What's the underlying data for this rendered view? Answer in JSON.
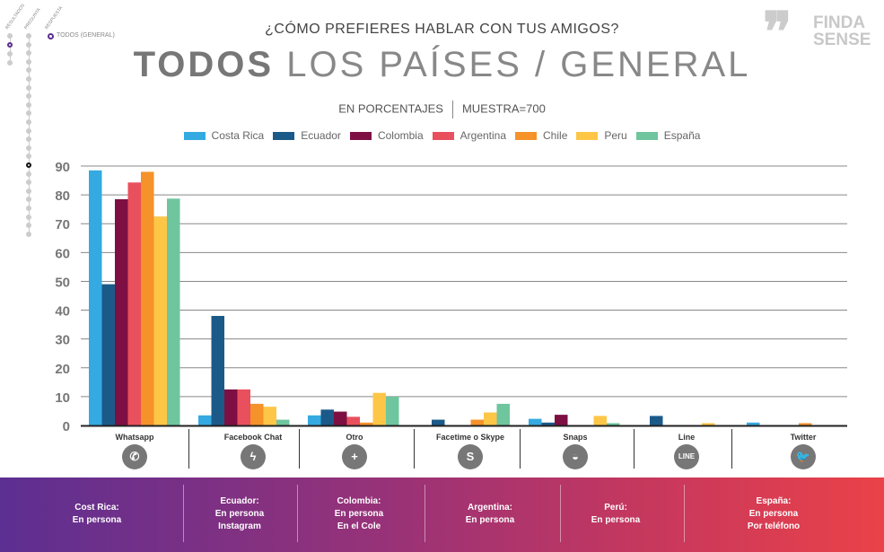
{
  "nav": {
    "columns": [
      "RESULTADOS",
      "PREGUNTA",
      "RESPUESTA"
    ],
    "current": "TODOS (GENERAL)",
    "accent": "#5b2d8e"
  },
  "header": {
    "question": "¿CÓMO PREFIERES HABLAR CON TUS AMIGOS?",
    "title_bold": "TODOS",
    "title_light": "LOS PAÍSES / GENERAL",
    "unit": "EN PORCENTAJES",
    "sample": "MUESTRA=700"
  },
  "logo": {
    "line1": "FINDA",
    "line2": "SENSE"
  },
  "chart_data": {
    "type": "bar",
    "categories": [
      "Whatsapp",
      "Facebook Chat",
      "Otro",
      "Facetime o Skype",
      "Snaps",
      "Line",
      "Twitter"
    ],
    "category_icons": [
      "whatsapp-icon",
      "messenger-icon",
      "plus-icon",
      "skype-icon",
      "snapchat-icon",
      "line-icon",
      "twitter-icon"
    ],
    "ylim": [
      0,
      90
    ],
    "yticks": [
      0,
      10,
      20,
      30,
      40,
      50,
      60,
      70,
      80,
      90
    ],
    "grid": true,
    "legend": "top",
    "series": [
      {
        "name": "Costa Rica",
        "color": "#35a9e1",
        "values": [
          88.5,
          3.5,
          3.5,
          0,
          2.3,
          0,
          1
        ]
      },
      {
        "name": "Ecuador",
        "color": "#1b5a88",
        "values": [
          49,
          38,
          5.5,
          2,
          1,
          3.3,
          0
        ]
      },
      {
        "name": "Colombia",
        "color": "#7e0f42",
        "values": [
          78.5,
          12.5,
          4.8,
          0,
          3.7,
          0,
          0
        ]
      },
      {
        "name": "Argentina",
        "color": "#e9505e",
        "values": [
          84.3,
          12.5,
          3,
          0,
          0,
          0,
          0
        ]
      },
      {
        "name": "Chile",
        "color": "#f5922a",
        "values": [
          88,
          7.5,
          1,
          2,
          0,
          0,
          0.8
        ]
      },
      {
        "name": "Peru",
        "color": "#fdc647",
        "values": [
          72.5,
          6.5,
          11.3,
          4.5,
          3.3,
          0.8,
          0
        ]
      },
      {
        "name": "España",
        "color": "#6fc59e",
        "values": [
          78.7,
          2,
          10,
          7.5,
          0.8,
          0,
          0
        ]
      }
    ]
  },
  "summary": [
    {
      "country": "Cost Rica:",
      "lines": [
        "En persona"
      ]
    },
    {
      "country": "Ecuador:",
      "lines": [
        "En persona",
        "Instagram"
      ]
    },
    {
      "country": "Colombia:",
      "lines": [
        "En persona",
        "En el Cole"
      ]
    },
    {
      "country": "Argentina:",
      "lines": [
        "En persona"
      ]
    },
    {
      "country": "Perú:",
      "lines": [
        "En persona"
      ]
    },
    {
      "country": "España:",
      "lines": [
        "En persona",
        "Por teléfono"
      ]
    }
  ]
}
